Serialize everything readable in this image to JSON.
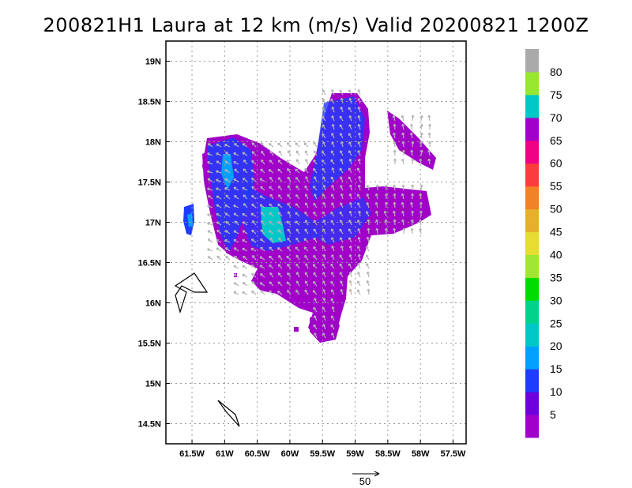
{
  "title": "200821H1 Laura at 12 km (m/s) Valid 20200821 1200Z",
  "map": {
    "lat_labels": [
      "19N",
      "18.5N",
      "18N",
      "17.5N",
      "17N",
      "16.5N",
      "16N",
      "15.5N",
      "15N",
      "14.5N"
    ],
    "lon_labels": [
      "61.5W",
      "61W",
      "60.5W",
      "60W",
      "59.5W",
      "59W",
      "58.5W",
      "58W",
      "57.5W"
    ],
    "lat_range": [
      14.25,
      19.25
    ],
    "lon_range": [
      -61.9,
      -57.3
    ],
    "grid": "dotted",
    "field": "wind speed (m/s) with wind vectors"
  },
  "colorbar": {
    "labels": [
      "5",
      "10",
      "15",
      "20",
      "25",
      "30",
      "35",
      "40",
      "45",
      "50",
      "55",
      "60",
      "65",
      "70",
      "75",
      "80"
    ],
    "colors": [
      "#a000c8",
      "#6e00dc",
      "#1e3cff",
      "#00a0ff",
      "#00c8c8",
      "#00d28c",
      "#00dc00",
      "#a0e632",
      "#e6dc32",
      "#e6af2d",
      "#f08228",
      "#fa3c3c",
      "#f00082",
      "#a000c8",
      "#00c8c8",
      "#96e632",
      "#aaaaaa"
    ]
  },
  "vector_key": {
    "label": "50"
  }
}
